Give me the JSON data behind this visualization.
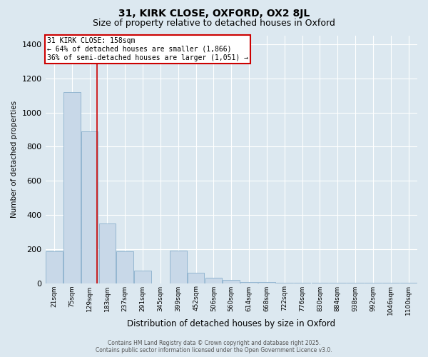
{
  "title_line1": "31, KIRK CLOSE, OXFORD, OX2 8JL",
  "title_line2": "Size of property relative to detached houses in Oxford",
  "xlabel": "Distribution of detached houses by size in Oxford",
  "ylabel": "Number of detached properties",
  "categories": [
    "21sqm",
    "75sqm",
    "129sqm",
    "183sqm",
    "237sqm",
    "291sqm",
    "345sqm",
    "399sqm",
    "452sqm",
    "506sqm",
    "560sqm",
    "614sqm",
    "668sqm",
    "722sqm",
    "776sqm",
    "830sqm",
    "884sqm",
    "938sqm",
    "992sqm",
    "1046sqm",
    "1100sqm"
  ],
  "values": [
    185,
    1120,
    890,
    350,
    185,
    75,
    0,
    190,
    60,
    30,
    20,
    5,
    5,
    3,
    3,
    2,
    2,
    2,
    2,
    2,
    2
  ],
  "bar_color": "#c8d8e8",
  "bar_edge_color": "#8ab0cc",
  "red_line_index": 2.42,
  "annotation_text_line1": "31 KIRK CLOSE: 158sqm",
  "annotation_text_line2": "← 64% of detached houses are smaller (1,866)",
  "annotation_text_line3": "36% of semi-detached houses are larger (1,051) →",
  "annotation_box_color": "#ffffff",
  "annotation_box_edge_color": "#cc0000",
  "ylim": [
    0,
    1450
  ],
  "yticks": [
    0,
    200,
    400,
    600,
    800,
    1000,
    1200,
    1400
  ],
  "bg_color": "#dce8f0",
  "footer_text": "Contains HM Land Registry data © Crown copyright and database right 2025.\nContains public sector information licensed under the Open Government Licence v3.0.",
  "title_fontsize": 10,
  "subtitle_fontsize": 9
}
